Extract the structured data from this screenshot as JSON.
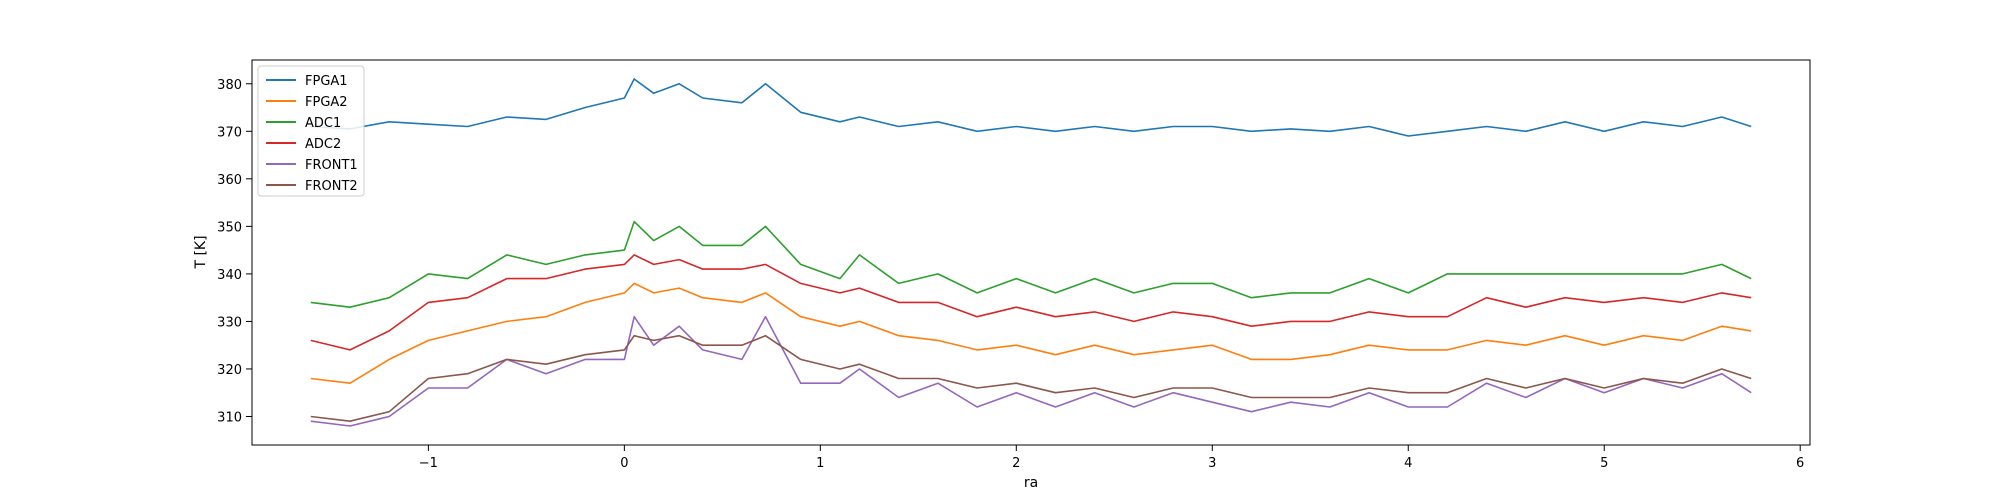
{
  "chart_data": {
    "type": "line",
    "title": "",
    "xlabel": "ra",
    "ylabel": "T [K]",
    "xlim": [
      -1.9,
      6.05
    ],
    "ylim": [
      304,
      385
    ],
    "x_ticks": [
      -1,
      0,
      1,
      2,
      3,
      4,
      5,
      6
    ],
    "x_tick_labels": [
      "−1",
      "0",
      "1",
      "2",
      "3",
      "4",
      "5",
      "6"
    ],
    "y_ticks": [
      310,
      320,
      330,
      340,
      350,
      360,
      370,
      380
    ],
    "y_tick_labels": [
      "310",
      "320",
      "330",
      "340",
      "350",
      "360",
      "370",
      "380"
    ],
    "grid": false,
    "legend_position": "top-left",
    "x": [
      -1.6,
      -1.4,
      -1.2,
      -1.0,
      -0.8,
      -0.6,
      -0.4,
      -0.2,
      0.0,
      0.05,
      0.15,
      0.28,
      0.4,
      0.6,
      0.72,
      0.9,
      1.1,
      1.2,
      1.4,
      1.6,
      1.8,
      2.0,
      2.2,
      2.4,
      2.6,
      2.8,
      3.0,
      3.2,
      3.4,
      3.6,
      3.8,
      4.0,
      4.2,
      4.4,
      4.6,
      4.8,
      5.0,
      5.2,
      5.4,
      5.6,
      5.75
    ],
    "series": [
      {
        "name": "FPGA1",
        "color": "#1f77b4",
        "values": [
          371,
          370.5,
          372,
          371.5,
          371,
          373,
          372.5,
          375,
          377,
          381,
          378,
          380,
          377,
          376,
          380,
          374,
          372,
          373,
          371,
          372,
          370,
          371,
          370,
          371,
          370,
          371,
          371,
          370,
          370.5,
          370,
          371,
          369,
          370,
          371,
          370,
          372,
          370,
          372,
          371,
          373,
          371
        ]
      },
      {
        "name": "FPGA2",
        "color": "#ff7f0e",
        "values": [
          318,
          317,
          322,
          326,
          328,
          330,
          331,
          334,
          336,
          338,
          336,
          337,
          335,
          334,
          336,
          331,
          329,
          330,
          327,
          326,
          324,
          325,
          323,
          325,
          323,
          324,
          325,
          322,
          322,
          323,
          325,
          324,
          324,
          326,
          325,
          327,
          325,
          327,
          326,
          329,
          328
        ]
      },
      {
        "name": "ADC1",
        "color": "#2ca02c",
        "values": [
          334,
          333,
          335,
          340,
          339,
          344,
          342,
          344,
          345,
          351,
          347,
          350,
          346,
          346,
          350,
          342,
          339,
          344,
          338,
          340,
          336,
          339,
          336,
          339,
          336,
          338,
          338,
          335,
          336,
          336,
          339,
          336,
          340,
          340,
          340,
          340,
          340,
          340,
          340,
          342,
          339
        ]
      },
      {
        "name": "ADC2",
        "color": "#d62728",
        "values": [
          326,
          324,
          328,
          334,
          335,
          339,
          339,
          341,
          342,
          344,
          342,
          343,
          341,
          341,
          342,
          338,
          336,
          337,
          334,
          334,
          331,
          333,
          331,
          332,
          330,
          332,
          331,
          329,
          330,
          330,
          332,
          331,
          331,
          335,
          333,
          335,
          334,
          335,
          334,
          336,
          335
        ]
      },
      {
        "name": "FRONT1",
        "color": "#9467bd",
        "values": [
          309,
          308,
          310,
          316,
          316,
          322,
          319,
          322,
          322,
          331,
          325,
          329,
          324,
          322,
          331,
          317,
          317,
          320,
          314,
          317,
          312,
          315,
          312,
          315,
          312,
          315,
          313,
          311,
          313,
          312,
          315,
          312,
          312,
          317,
          314,
          318,
          315,
          318,
          316,
          319,
          315
        ]
      },
      {
        "name": "FRONT2",
        "color": "#8c564b",
        "values": [
          310,
          309,
          311,
          318,
          319,
          322,
          321,
          323,
          324,
          327,
          326,
          327,
          325,
          325,
          327,
          322,
          320,
          321,
          318,
          318,
          316,
          317,
          315,
          316,
          314,
          316,
          316,
          314,
          314,
          314,
          316,
          315,
          315,
          318,
          316,
          318,
          316,
          318,
          317,
          320,
          318
        ]
      }
    ]
  }
}
